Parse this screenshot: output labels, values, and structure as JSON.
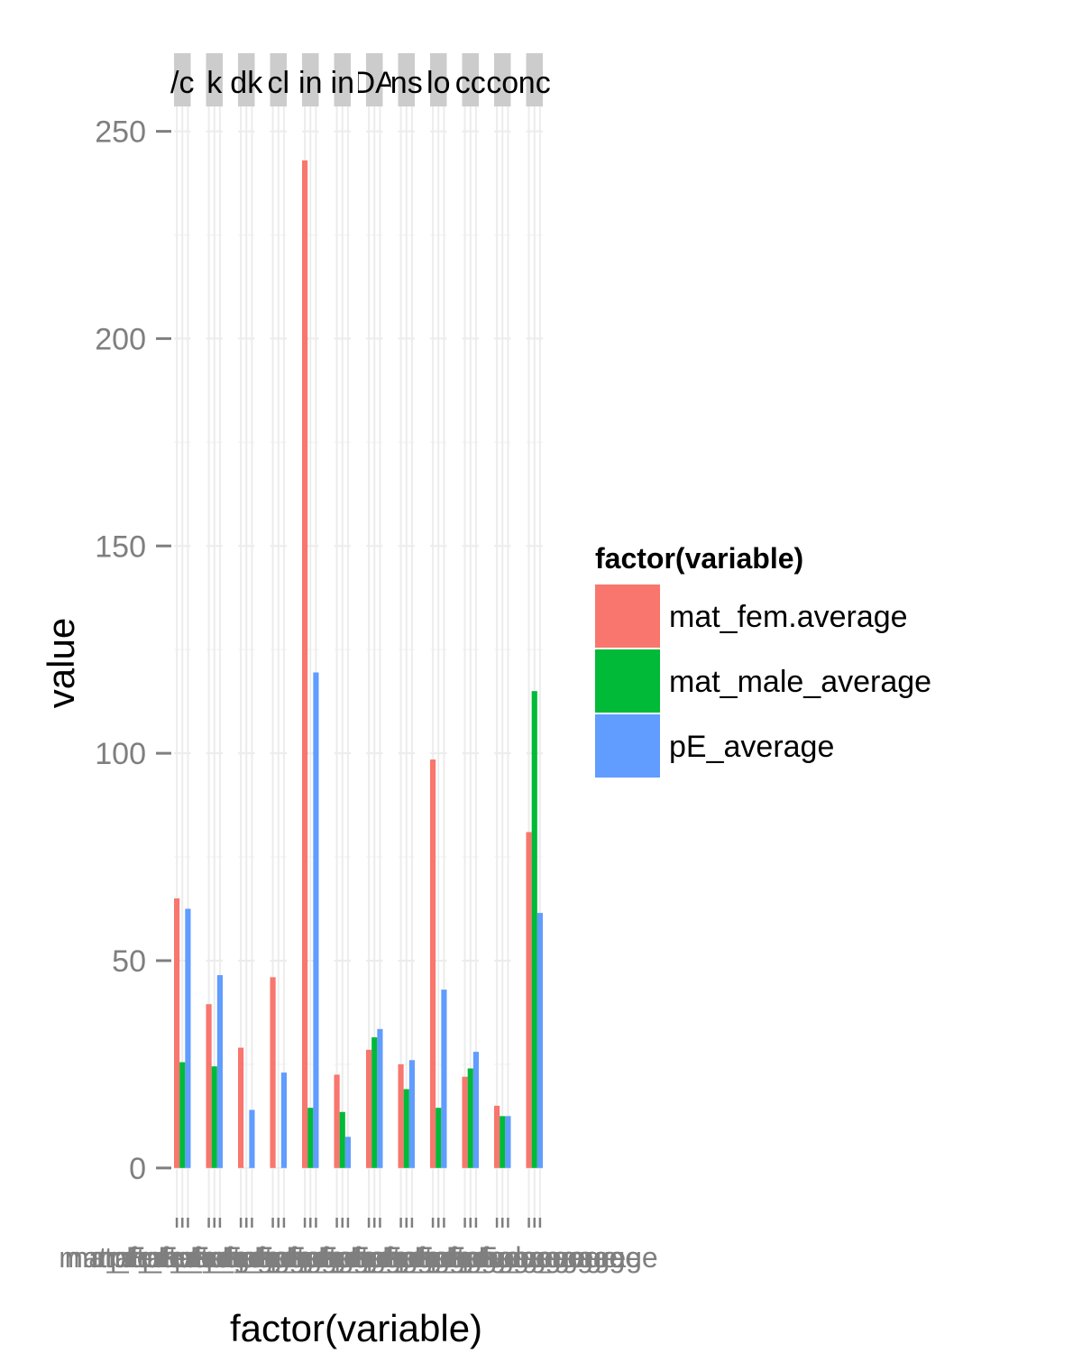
{
  "chart_data": {
    "type": "bar",
    "xlabel": "factor(variable)",
    "ylabel": "value",
    "ylim": [
      -12,
      256
    ],
    "yticks": [
      0,
      50,
      100,
      150,
      200,
      250
    ],
    "grid": true,
    "legend": {
      "title": "factor(variable)",
      "position": "right"
    },
    "series_names": [
      "mat_fem.average",
      "mat_male_average",
      "pE_average"
    ],
    "colors": [
      "#F8766D",
      "#00BA38",
      "#619CFF"
    ],
    "facets": [
      {
        "label": "/c",
        "values": [
          65,
          25.5,
          62.5
        ]
      },
      {
        "label": "k",
        "values": [
          39.5,
          24.5,
          46.5
        ]
      },
      {
        "label": "dk",
        "values": [
          29,
          0,
          14
        ]
      },
      {
        "label": "cl",
        "values": [
          46,
          0,
          23
        ]
      },
      {
        "label": "in",
        "values": [
          243,
          14.5,
          119.5
        ]
      },
      {
        "label": "in",
        "values": [
          22.5,
          13.5,
          7.5
        ]
      },
      {
        "label": "DA",
        "values": [
          28.5,
          31.5,
          33.5
        ]
      },
      {
        "label": "ns",
        "values": [
          25,
          19,
          26
        ]
      },
      {
        "label": "lo",
        "values": [
          98.5,
          14.5,
          43
        ]
      },
      {
        "label": "cc",
        "values": [
          22,
          24,
          28
        ]
      },
      {
        "label": "co",
        "values": [
          15,
          12.5,
          12.5
        ]
      },
      {
        "label": "nc",
        "values": [
          81,
          115,
          61.5
        ]
      }
    ],
    "x_category_labels": [
      "mat_fem.average",
      "mat_male_average",
      "pE_average"
    ]
  }
}
